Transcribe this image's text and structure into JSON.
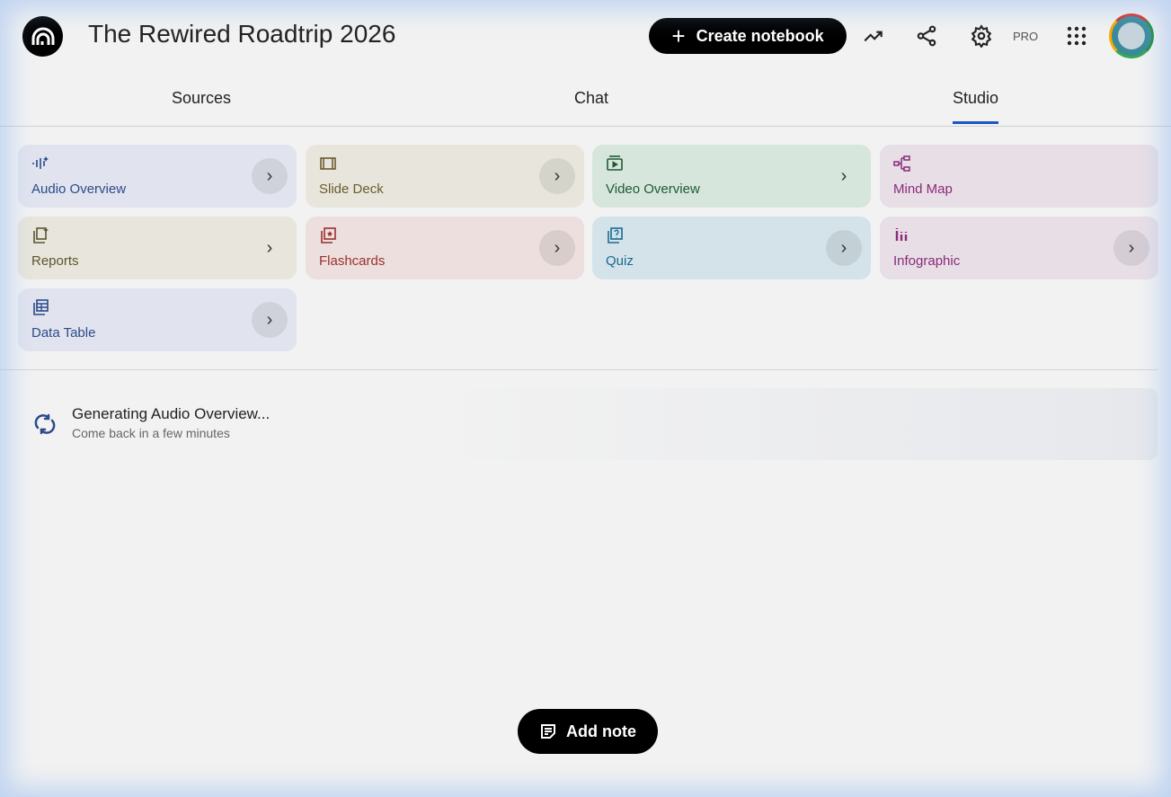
{
  "header": {
    "title": "The Rewired Roadtrip 2026",
    "create_label": "Create notebook",
    "plan_badge": "PRO",
    "icons": [
      "logo-icon",
      "analytics-icon",
      "share-icon",
      "settings-icon",
      "apps-grid-icon",
      "avatar"
    ]
  },
  "tabs": [
    {
      "label": "Sources",
      "active": false
    },
    {
      "label": "Chat",
      "active": false
    },
    {
      "label": "Studio",
      "active": true
    }
  ],
  "studio": {
    "tiles": [
      {
        "label": "Audio Overview",
        "icon": "audio-wave-icon",
        "color": "#2c4a8a",
        "bg": "#e1e4ee"
      },
      {
        "label": "Slide Deck",
        "icon": "slides-icon",
        "color": "#6b5a2e",
        "bg": "#e8e6dc"
      },
      {
        "label": "Video Overview",
        "icon": "video-icon",
        "color": "#1f5a34",
        "bg": "#d6e6dc"
      },
      {
        "label": "Mind Map",
        "icon": "mind-map-icon",
        "color": "#8a2a7a",
        "bg": "#e8dfe6"
      },
      {
        "label": "Reports",
        "icon": "reports-icon",
        "color": "#5c5530",
        "bg": "#e8e6dc"
      },
      {
        "label": "Flashcards",
        "icon": "flashcards-icon",
        "color": "#9a3030",
        "bg": "#ecdfdd"
      },
      {
        "label": "Quiz",
        "icon": "quiz-icon",
        "color": "#1a6a90",
        "bg": "#d4e3ea"
      },
      {
        "label": "Infographic",
        "icon": "infographic-icon",
        "color": "#8a2a7a",
        "bg": "#e8dfe6"
      },
      {
        "label": "Data Table",
        "icon": "table-icon",
        "color": "#2c4a8a",
        "bg": "#e1e4ee"
      }
    ],
    "generating": {
      "title": "Generating Audio Overview...",
      "subtitle": "Come back in a few minutes"
    },
    "add_note_label": "Add note"
  },
  "colors": {
    "accent": "#1a56c8",
    "primary_button": "#000000"
  }
}
